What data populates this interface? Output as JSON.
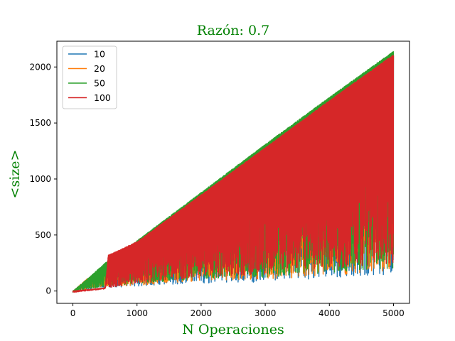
{
  "chart_data": {
    "type": "line",
    "title": "Razón: 0.7",
    "xlabel": "N Operaciones",
    "ylabel": "<size>",
    "label_color": "#008000",
    "xlim": [
      -250,
      5250
    ],
    "ylim": [
      -110,
      2230
    ],
    "x_ticks": [
      0,
      1000,
      2000,
      3000,
      4000,
      5000
    ],
    "x_tick_labels": [
      "0",
      "1000",
      "2000",
      "3000",
      "4000",
      "5000"
    ],
    "y_ticks": [
      0,
      500,
      1000,
      1500,
      2000
    ],
    "y_tick_labels": [
      "0",
      "500",
      "1000",
      "1500",
      "2000"
    ],
    "grid": false,
    "legend_position": "top-left",
    "x_range": [
      0,
      5000
    ],
    "series": [
      {
        "name": "10",
        "color": "#1f77b4",
        "upper_envelope": [
          [
            0,
            0
          ],
          [
            500,
            240
          ],
          [
            1000,
            440
          ],
          [
            2000,
            860
          ],
          [
            3000,
            1275
          ],
          [
            4000,
            1700
          ],
          [
            5000,
            2100
          ]
        ],
        "lower_envelope": [
          [
            0,
            0
          ],
          [
            500,
            30
          ],
          [
            1000,
            40
          ],
          [
            2000,
            70
          ],
          [
            3000,
            80
          ],
          [
            4000,
            120
          ],
          [
            5000,
            150
          ]
        ]
      },
      {
        "name": "20",
        "color": "#ff7f0e",
        "upper_envelope": [
          [
            0,
            0
          ],
          [
            200,
            100
          ],
          [
            500,
            230
          ],
          [
            1000,
            440
          ],
          [
            2000,
            860
          ],
          [
            3000,
            1280
          ],
          [
            4000,
            1700
          ],
          [
            5000,
            2110
          ]
        ],
        "lower_envelope": [
          [
            0,
            0
          ],
          [
            500,
            40
          ],
          [
            1000,
            50
          ],
          [
            2000,
            90
          ],
          [
            3000,
            100
          ],
          [
            4000,
            140
          ],
          [
            5000,
            170
          ]
        ]
      },
      {
        "name": "50",
        "color": "#2ca02c",
        "upper_envelope": [
          [
            0,
            0
          ],
          [
            250,
            120
          ],
          [
            500,
            250
          ],
          [
            1000,
            450
          ],
          [
            2000,
            880
          ],
          [
            3000,
            1310
          ],
          [
            4000,
            1730
          ],
          [
            5000,
            2140
          ]
        ],
        "lower_envelope": [
          [
            0,
            0
          ],
          [
            500,
            40
          ],
          [
            1000,
            60
          ],
          [
            2000,
            110
          ],
          [
            3000,
            120
          ],
          [
            4000,
            160
          ],
          [
            5000,
            200
          ]
        ]
      },
      {
        "name": "100",
        "color": "#d62728",
        "upper_envelope": [
          [
            0,
            0
          ],
          [
            500,
            30
          ],
          [
            550,
            320
          ],
          [
            1000,
            440
          ],
          [
            2000,
            860
          ],
          [
            3000,
            1280
          ],
          [
            4000,
            1700
          ],
          [
            5000,
            2110
          ]
        ],
        "lower_envelope": [
          [
            0,
            0
          ],
          [
            500,
            20
          ],
          [
            1000,
            70
          ],
          [
            2000,
            120
          ],
          [
            3000,
            150
          ],
          [
            4000,
            200
          ],
          [
            5000,
            250
          ]
        ]
      }
    ]
  }
}
